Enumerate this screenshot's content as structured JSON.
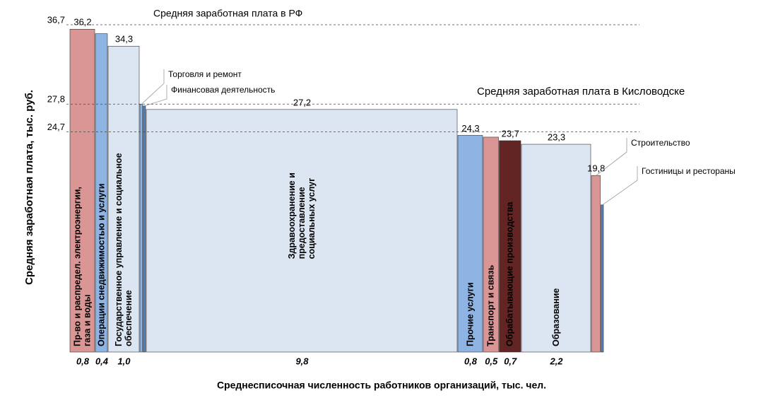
{
  "chart_data": {
    "type": "variable-width-bar",
    "y_label": "Средняя заработная плата, тыс. руб.",
    "x_label": "Среднесписочная численность работников организаций, тыс. чел.",
    "categories": [
      [
        "Пр-во и распредел. электроэнергии,",
        "газа и воды"
      ],
      [
        "Операции снедвижимостью и услуги"
      ],
      [
        "Государственное управление и социальное",
        "обеспечение"
      ],
      [
        "Торговля и ремонт"
      ],
      [
        "Финансовая деятельность"
      ],
      [
        "Здравоохранение и",
        "предоставление",
        "социальных услуг"
      ],
      [
        "Прочие услуги"
      ],
      [
        "Транспорт и связь"
      ],
      [
        "Обрабатывающие производства"
      ],
      [
        "Образование"
      ],
      [
        "Строительство"
      ],
      [
        "Гостиницы и рестораны"
      ]
    ],
    "values": [
      36.2,
      35.7,
      34.3,
      27.8,
      27.6,
      27.2,
      24.3,
      24.1,
      23.7,
      23.3,
      19.8,
      16.5
    ],
    "value_labels": [
      "36,2",
      null,
      "34,3",
      null,
      null,
      "27,2",
      "24,3",
      null,
      "23,7",
      "23,3",
      "19,8",
      null
    ],
    "widths": [
      0.8,
      0.4,
      1.0,
      0.1,
      0.1,
      9.8,
      0.8,
      0.5,
      0.7,
      2.2,
      0.3,
      0.1
    ],
    "width_labels": [
      "0,8",
      "0,4",
      "1,0",
      null,
      null,
      "9,8",
      "0,8",
      "0,5",
      "0,7",
      "2,2",
      null,
      null
    ],
    "colors": [
      "#d99694",
      "#8eb4e3",
      "#dce6f2",
      "#8eb4e3",
      "#4f81bd",
      "#dce6f2",
      "#8eb4e3",
      "#d99694",
      "#632523",
      "#dce6f2",
      "#d99694",
      "#4f81bd"
    ],
    "ylim": [
      0,
      36.7
    ],
    "yticks": [
      {
        "value": 36.7,
        "label": "36,7"
      },
      {
        "value": 27.8,
        "label": "27,8"
      },
      {
        "value": 24.7,
        "label": "24,7"
      }
    ],
    "reference_lines": [
      {
        "value": 36.7,
        "label": "Средняя заработная плата в РФ"
      },
      {
        "value": 27.8,
        "label": "Средняя заработная плата в Кисловодске"
      },
      {
        "value": 24.7
      }
    ]
  }
}
